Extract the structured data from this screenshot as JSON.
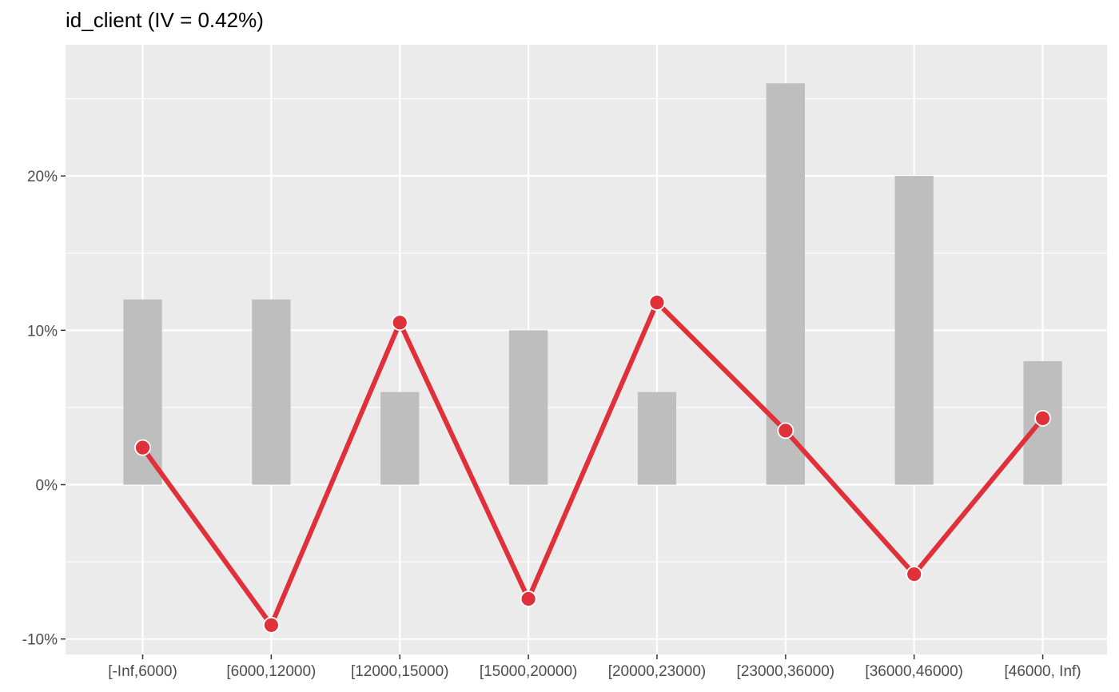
{
  "chart_data": {
    "type": "bar",
    "title": "id_client (IV = 0.42%)",
    "xlabel": "",
    "ylabel": "",
    "categories": [
      "[-Inf,6000)",
      "[6000,12000)",
      "[12000,15000)",
      "[15000,20000)",
      "[20000,23000)",
      "[23000,36000)",
      "[36000,46000)",
      "[46000, Inf)"
    ],
    "series": [
      {
        "kind": "bar",
        "values": [
          12,
          12,
          6,
          10,
          6,
          26,
          20,
          8
        ]
      },
      {
        "kind": "line",
        "values": [
          2.4,
          -9.1,
          10.5,
          -7.4,
          11.8,
          3.5,
          -5.8,
          4.3
        ]
      }
    ],
    "ylim": [
      -11,
      28.5
    ],
    "yticks": [
      -10,
      0,
      10,
      20
    ],
    "ytick_labels": [
      "-10%",
      "0%",
      "10%",
      "20%"
    ],
    "grid": true,
    "colors": {
      "bar": "#bebebe",
      "line": "#e0303a",
      "panel": "#ebebeb",
      "grid": "#ffffff"
    }
  }
}
